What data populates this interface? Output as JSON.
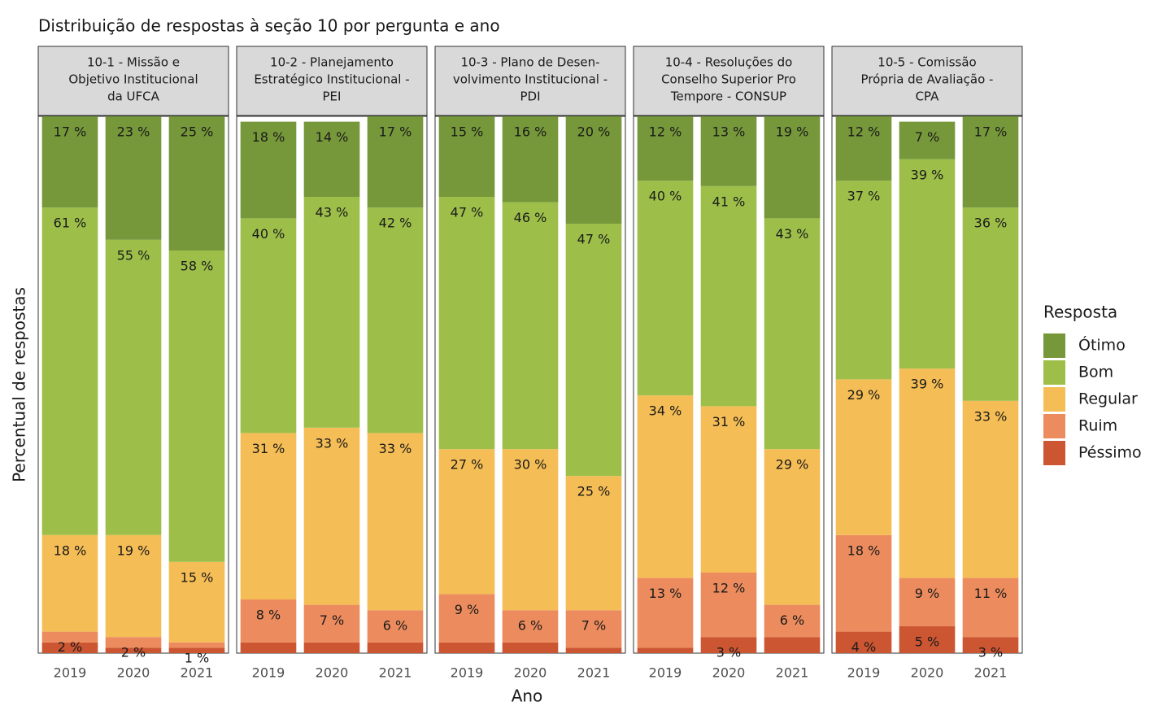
{
  "chart_data": {
    "type": "bar",
    "stacked": true,
    "title": "Distribuição de respostas à seção 10 por pergunta e ano",
    "x_label": "Ano",
    "y_label": "Percentual de respostas",
    "ylim": [
      0,
      100
    ],
    "legend_title": "Resposta",
    "legend_position": "right",
    "facets": [
      {
        "title_lines": [
          "10-1 - Missão e",
          "Objetivo Institucional",
          "da UFCA"
        ],
        "categories": [
          "2019",
          "2020",
          "2021"
        ],
        "series": [
          {
            "name": "Ótimo",
            "color": "#76983a",
            "values": [
              17,
              23,
              25
            ],
            "value_labels": [
              "17 %",
              "23 %",
              "25 %"
            ]
          },
          {
            "name": "Bom",
            "color": "#9dbf4a",
            "values": [
              61,
              55,
              58
            ],
            "value_labels": [
              "61 %",
              "55 %",
              "58 %"
            ]
          },
          {
            "name": "Regular",
            "color": "#f5bd55",
            "values": [
              18,
              19,
              15
            ],
            "value_labels": [
              "18 %",
              "19 %",
              "15 %"
            ]
          },
          {
            "name": "Ruim",
            "color": "#ec8c5e",
            "values": [
              2,
              2,
              1
            ],
            "value_labels": [
              "2 %",
              "2 %",
              "1 %"
            ]
          },
          {
            "name": "Péssimo",
            "color": "#cc5532",
            "values": [
              2,
              1,
              1
            ],
            "value_labels": [
              null,
              null,
              null
            ]
          }
        ]
      },
      {
        "title_lines": [
          "10-2 - Planejamento",
          "Estratégico Institucional -",
          "PEI"
        ],
        "categories": [
          "2019",
          "2020",
          "2021"
        ],
        "series": [
          {
            "name": "Ótimo",
            "color": "#76983a",
            "values": [
              18,
              14,
              17
            ],
            "value_labels": [
              "18 %",
              "14 %",
              "17 %"
            ]
          },
          {
            "name": "Bom",
            "color": "#9dbf4a",
            "values": [
              40,
              43,
              42
            ],
            "value_labels": [
              "40 %",
              "43 %",
              "42 %"
            ]
          },
          {
            "name": "Regular",
            "color": "#f5bd55",
            "values": [
              31,
              33,
              33
            ],
            "value_labels": [
              "31 %",
              "33 %",
              "33 %"
            ]
          },
          {
            "name": "Ruim",
            "color": "#ec8c5e",
            "values": [
              8,
              7,
              6
            ],
            "value_labels": [
              "8 %",
              "7 %",
              "6 %"
            ]
          },
          {
            "name": "Péssimo",
            "color": "#cc5532",
            "values": [
              2,
              2,
              2
            ],
            "value_labels": [
              null,
              null,
              null
            ]
          }
        ]
      },
      {
        "title_lines": [
          "10-3 - Plano de Desen-",
          "volvimento Institucional -",
          "PDI"
        ],
        "categories": [
          "2019",
          "2020",
          "2021"
        ],
        "series": [
          {
            "name": "Ótimo",
            "color": "#76983a",
            "values": [
              15,
              16,
              20
            ],
            "value_labels": [
              "15 %",
              "16 %",
              "20 %"
            ]
          },
          {
            "name": "Bom",
            "color": "#9dbf4a",
            "values": [
              47,
              46,
              47
            ],
            "value_labels": [
              "47 %",
              "46 %",
              "47 %"
            ]
          },
          {
            "name": "Regular",
            "color": "#f5bd55",
            "values": [
              27,
              30,
              25
            ],
            "value_labels": [
              "27 %",
              "30 %",
              "25 %"
            ]
          },
          {
            "name": "Ruim",
            "color": "#ec8c5e",
            "values": [
              9,
              6,
              7
            ],
            "value_labels": [
              "9 %",
              "6 %",
              "7 %"
            ]
          },
          {
            "name": "Péssimo",
            "color": "#cc5532",
            "values": [
              2,
              2,
              1
            ],
            "value_labels": [
              null,
              null,
              null
            ]
          }
        ]
      },
      {
        "title_lines": [
          "10-4 - Resoluções do",
          "Conselho Superior Pro",
          "Tempore - CONSUP"
        ],
        "categories": [
          "2019",
          "2020",
          "2021"
        ],
        "series": [
          {
            "name": "Ótimo",
            "color": "#76983a",
            "values": [
              12,
              13,
              19
            ],
            "value_labels": [
              "12 %",
              "13 %",
              "19 %"
            ]
          },
          {
            "name": "Bom",
            "color": "#9dbf4a",
            "values": [
              40,
              41,
              43
            ],
            "value_labels": [
              "40 %",
              "41 %",
              "43 %"
            ]
          },
          {
            "name": "Regular",
            "color": "#f5bd55",
            "values": [
              34,
              31,
              29
            ],
            "value_labels": [
              "34 %",
              "31 %",
              "29 %"
            ]
          },
          {
            "name": "Ruim",
            "color": "#ec8c5e",
            "values": [
              13,
              12,
              6
            ],
            "value_labels": [
              "13 %",
              "12 %",
              "6 %"
            ]
          },
          {
            "name": "Péssimo",
            "color": "#cc5532",
            "values": [
              1,
              3,
              3
            ],
            "value_labels": [
              null,
              "3 %",
              null
            ]
          }
        ]
      },
      {
        "title_lines": [
          "10-5 - Comissão",
          "Própria de Avaliação -",
          "CPA"
        ],
        "categories": [
          "2019",
          "2020",
          "2021"
        ],
        "series": [
          {
            "name": "Ótimo",
            "color": "#76983a",
            "values": [
              12,
              7,
              17
            ],
            "value_labels": [
              "12 %",
              "7 %",
              "17 %"
            ]
          },
          {
            "name": "Bom",
            "color": "#9dbf4a",
            "values": [
              37,
              39,
              36
            ],
            "value_labels": [
              "37 %",
              "39 %",
              "36 %"
            ]
          },
          {
            "name": "Regular",
            "color": "#f5bd55",
            "values": [
              29,
              39,
              33
            ],
            "value_labels": [
              "29 %",
              "39 %",
              "33 %"
            ]
          },
          {
            "name": "Ruim",
            "color": "#ec8c5e",
            "values": [
              18,
              9,
              11
            ],
            "value_labels": [
              "18 %",
              "9 %",
              "11 %"
            ]
          },
          {
            "name": "Péssimo",
            "color": "#cc5532",
            "values": [
              4,
              5,
              3
            ],
            "value_labels": [
              "4 %",
              "5 %",
              "3 %"
            ]
          }
        ]
      }
    ]
  }
}
